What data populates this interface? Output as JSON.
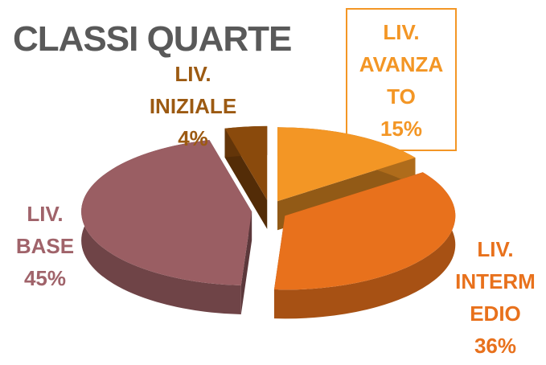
{
  "chart_data": {
    "type": "pie",
    "title": "CLASSI QUARTE",
    "categories": [
      "LIV. AVANZATO",
      "LIV. INTERMEDIO",
      "LIV. BASE",
      "LIV. INIZIALE"
    ],
    "values": [
      15,
      36,
      45,
      4
    ],
    "value_labels": [
      "15%",
      "36%",
      "45%",
      "4%"
    ],
    "colors": [
      "#f39625",
      "#e8711c",
      "#9a5e63",
      "#8a4a0c"
    ]
  }
}
